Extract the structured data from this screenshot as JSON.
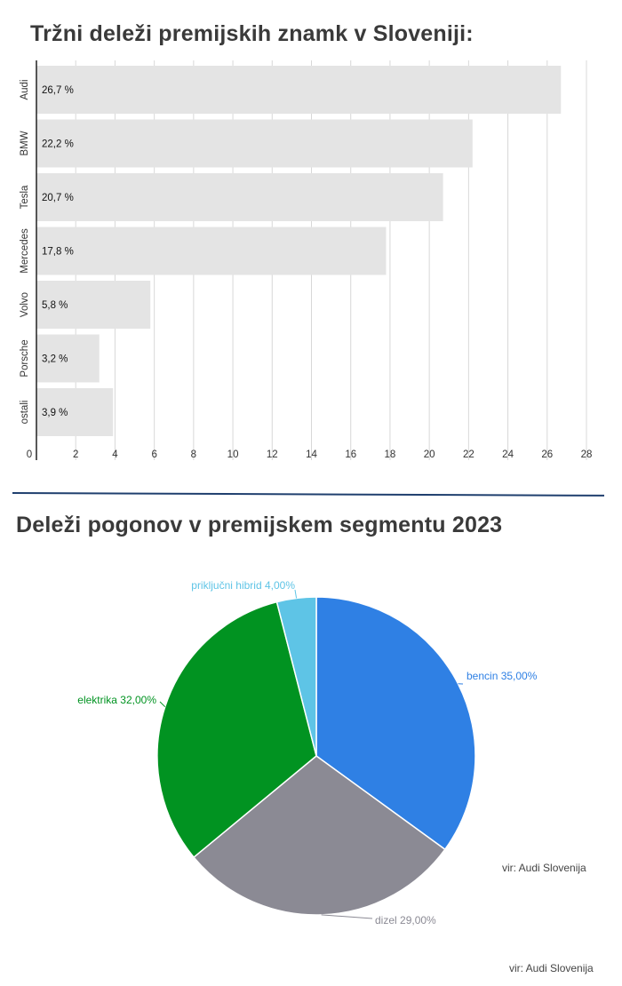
{
  "colors": {
    "bar_fill": "#e4e4e4",
    "gridline": "#d8d8d8",
    "axis": "#222222",
    "divider": "#1f3f6e",
    "bencin": "#2f80e4",
    "dizel": "#8b8a94",
    "elektrika": "#019321",
    "priklj": "#5ec4e6"
  },
  "chart_data": [
    {
      "type": "bar",
      "orientation": "horizontal",
      "title": "Tržni deleži premijskih znamk v Sloveniji:",
      "categories": [
        "Audi",
        "BMW",
        "Tesla",
        "Mercedes",
        "Volvo",
        "Porsche",
        "ostali"
      ],
      "values": [
        26.7,
        22.2,
        20.7,
        17.8,
        5.8,
        3.2,
        3.9
      ],
      "value_labels": [
        "26,7 %",
        "22,2 %",
        "20,7 %",
        "17,8 %",
        "5,8 %",
        "3,2 %",
        "3,9 %"
      ],
      "xlim": [
        0,
        28
      ],
      "xticks": [
        0,
        2,
        4,
        6,
        8,
        10,
        12,
        14,
        16,
        18,
        20,
        22,
        24,
        26,
        28
      ],
      "grid": "vertical"
    },
    {
      "type": "pie",
      "title": "Deleži pogonov v premijskem segmentu 2023",
      "slices": [
        {
          "key": "bencin",
          "label": "bencin 35,00%",
          "value": 35.0
        },
        {
          "key": "dizel",
          "label": "dizel 29,00%",
          "value": 29.0
        },
        {
          "key": "elektrika",
          "label": "elektrika 32,00%",
          "value": 32.0
        },
        {
          "key": "priklj",
          "label": "priključni hibrid 4,00%",
          "value": 4.0
        }
      ],
      "source": "vir: Audi Slovenija"
    }
  ],
  "footer": {
    "source": "vir: Audi Slovenija"
  }
}
